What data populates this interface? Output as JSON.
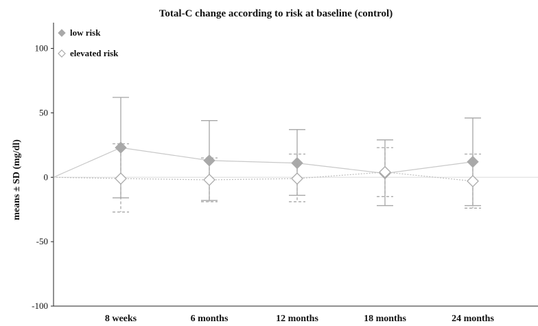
{
  "chart_data": {
    "type": "line",
    "title": "Total-C change according to risk at baseline (control)",
    "xlabel": "",
    "ylabel": "means ± SD (mg/dl)",
    "ylim": [
      -100,
      120
    ],
    "yticks": [
      -100,
      -50,
      0,
      50,
      100
    ],
    "categories": [
      "8 weeks",
      "6 months",
      "12 months",
      "18 months",
      "24 months"
    ],
    "grid": false,
    "legend_position": "top-left",
    "series": [
      {
        "name": "low risk",
        "marker": "filled-diamond",
        "line_style": "solid",
        "color": "#a6a6a6",
        "values": [
          23,
          13,
          11,
          3,
          12
        ],
        "sd_upper": [
          62,
          44,
          37,
          29,
          46
        ],
        "sd_lower": [
          -16,
          -18,
          -14,
          -22,
          -22
        ]
      },
      {
        "name": "elevated risk",
        "marker": "open-diamond",
        "line_style": "dashed",
        "color": "#a6a6a6",
        "values": [
          -1,
          -2,
          -1,
          4,
          -3
        ],
        "sd_upper": [
          26,
          15,
          18,
          23,
          18
        ],
        "sd_lower": [
          -27,
          -19,
          -19,
          -15,
          -24
        ]
      }
    ]
  }
}
